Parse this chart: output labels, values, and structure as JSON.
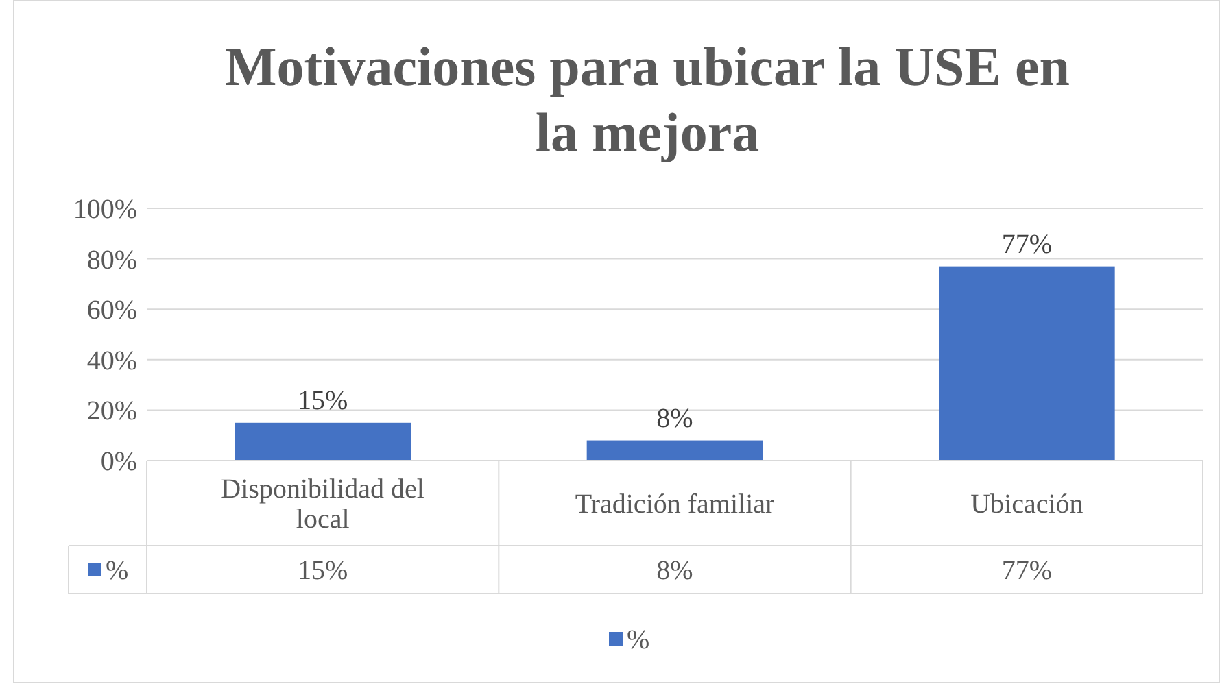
{
  "chart_data": {
    "type": "bar",
    "title": "Motivaciones para ubicar la USE en la mejora",
    "categories": [
      "Disponibilidad del local",
      "Tradición familiar",
      "Ubicación"
    ],
    "series": [
      {
        "name": "%",
        "color": "#4472c4",
        "values": [
          15,
          8,
          77
        ],
        "value_labels": [
          "15%",
          "8%",
          "77%"
        ]
      }
    ],
    "ylim": [
      0,
      100
    ],
    "yticks": [
      {
        "value": 0,
        "label": "0%"
      },
      {
        "value": 20,
        "label": "20%"
      },
      {
        "value": 40,
        "label": "40%"
      },
      {
        "value": 60,
        "label": "60%"
      },
      {
        "value": 80,
        "label": "80%"
      },
      {
        "value": 100,
        "label": "100%"
      }
    ],
    "grid": "y",
    "legend": "bottom"
  }
}
